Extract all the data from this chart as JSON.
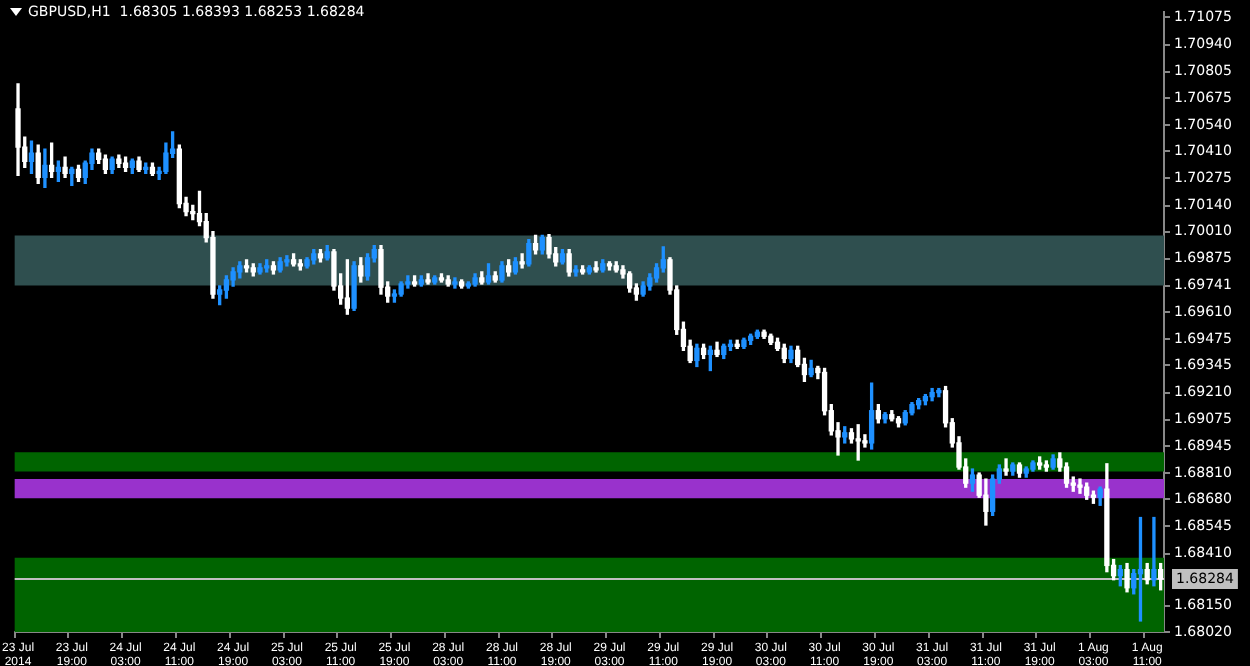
{
  "chart_data": {
    "type": "candlestick",
    "title": "GBPUSD,H1  1.68305 1.68393 1.68253 1.68284",
    "categories": [
      "23 Jul 2014",
      null,
      null,
      null,
      null,
      null,
      null,
      null,
      "23 Jul 19:00",
      null,
      null,
      null,
      null,
      null,
      null,
      null,
      "24 Jul 03:00",
      null,
      null,
      null,
      null,
      null,
      null,
      null,
      "24 Jul 11:00",
      null,
      null,
      null,
      null,
      null,
      null,
      null,
      "24 Jul 19:00",
      null,
      null,
      null,
      null,
      null,
      null,
      null,
      "25 Jul 03:00",
      null,
      null,
      null,
      null,
      null,
      null,
      null,
      "25 Jul 11:00",
      null,
      null,
      null,
      null,
      null,
      null,
      null,
      "25 Jul 19:00",
      null,
      null,
      null,
      null,
      null,
      null,
      null,
      "28 Jul 03:00",
      null,
      null,
      null,
      null,
      null,
      null,
      null,
      "28 Jul 11:00",
      null,
      null,
      null,
      null,
      null,
      null,
      null,
      "28 Jul 19:00",
      null,
      null,
      null,
      null,
      null,
      null,
      null,
      "29 Jul 03:00",
      null,
      null,
      null,
      null,
      null,
      null,
      null,
      "29 Jul 11:00",
      null,
      null,
      null,
      null,
      null,
      null,
      null,
      "29 Jul 19:00",
      null,
      null,
      null,
      null,
      null,
      null,
      null,
      "30 Jul 03:00",
      null,
      null,
      null,
      null,
      null,
      null,
      null,
      "30 Jul 11:00",
      null,
      null,
      null,
      null,
      null,
      null,
      null,
      "30 Jul 19:00",
      null,
      null,
      null,
      null,
      null,
      null,
      null,
      "31 Jul 03:00",
      null,
      null,
      null,
      null,
      null,
      null,
      null,
      "31 Jul 11:00",
      null,
      null,
      null,
      null,
      null,
      null,
      null,
      "31 Jul 19:00",
      null,
      null,
      null,
      null,
      null,
      null,
      null,
      "1 Aug 03:00",
      null,
      null,
      null,
      null,
      null,
      null,
      null,
      "1 Aug 11:00",
      null,
      null
    ],
    "ohlc": [
      [
        1.7062,
        1.70744,
        1.7029,
        1.7043
      ],
      [
        1.7043,
        1.7048,
        1.7033,
        1.7036
      ],
      [
        1.7036,
        1.7046,
        1.703,
        1.704
      ],
      [
        1.704,
        1.7044,
        1.7025,
        1.7028
      ],
      [
        1.7028,
        1.7042,
        1.7023,
        1.7034
      ],
      [
        1.7034,
        1.7045,
        1.7028,
        1.7031
      ],
      [
        1.7031,
        1.7036,
        1.7026,
        1.7033
      ],
      [
        1.7033,
        1.7038,
        1.7028,
        1.703
      ],
      [
        1.703,
        1.7033,
        1.7024,
        1.7032
      ],
      [
        1.7032,
        1.7034,
        1.7026,
        1.7028
      ],
      [
        1.7028,
        1.7036,
        1.7025,
        1.7035
      ],
      [
        1.7035,
        1.7042,
        1.7032,
        1.704
      ],
      [
        1.704,
        1.7042,
        1.7035,
        1.7037
      ],
      [
        1.7037,
        1.7039,
        1.703,
        1.7032
      ],
      [
        1.7032,
        1.7038,
        1.703,
        1.7037
      ],
      [
        1.7037,
        1.7039,
        1.7033,
        1.7035
      ],
      [
        1.7035,
        1.7038,
        1.7031,
        1.7033
      ],
      [
        1.7033,
        1.7037,
        1.703,
        1.7036
      ],
      [
        1.7036,
        1.7038,
        1.7031,
        1.7032
      ],
      [
        1.7032,
        1.7035,
        1.703,
        1.7033
      ],
      [
        1.7033,
        1.7035,
        1.7029,
        1.703
      ],
      [
        1.703,
        1.7033,
        1.7027,
        1.7031
      ],
      [
        1.7031,
        1.7045,
        1.703,
        1.704
      ],
      [
        1.704,
        1.70506,
        1.7038,
        1.7042
      ],
      [
        1.7042,
        1.7044,
        1.7013,
        1.7015
      ],
      [
        1.7015,
        1.7018,
        1.7009,
        1.7011
      ],
      [
        1.7011,
        1.7014,
        1.7007,
        1.701
      ],
      [
        1.701,
        1.7021,
        1.7004,
        1.7006
      ],
      [
        1.7006,
        1.701,
        1.6996,
        1.6998
      ],
      [
        1.6998,
        1.7001,
        1.6968,
        1.697
      ],
      [
        1.697,
        1.6974,
        1.69648,
        1.6972
      ],
      [
        1.6972,
        1.6979,
        1.6968,
        1.6977
      ],
      [
        1.6977,
        1.6983,
        1.6974,
        1.6981
      ],
      [
        1.6981,
        1.6986,
        1.6978,
        1.6984
      ],
      [
        1.6984,
        1.6987,
        1.6981,
        1.6983
      ],
      [
        1.6983,
        1.6985,
        1.6979,
        1.6981
      ],
      [
        1.6981,
        1.6985,
        1.698,
        1.6983
      ],
      [
        1.6983,
        1.6987,
        1.6981,
        1.6984
      ],
      [
        1.6984,
        1.6986,
        1.698,
        1.6982
      ],
      [
        1.6982,
        1.6988,
        1.6981,
        1.6986
      ],
      [
        1.6986,
        1.6989,
        1.6984,
        1.6987
      ],
      [
        1.6987,
        1.699,
        1.6984,
        1.6985
      ],
      [
        1.6985,
        1.6987,
        1.6982,
        1.6984
      ],
      [
        1.6984,
        1.6988,
        1.6983,
        1.6987
      ],
      [
        1.6987,
        1.6992,
        1.6985,
        1.699
      ],
      [
        1.699,
        1.6992,
        1.6986,
        1.6988
      ],
      [
        1.6988,
        1.6994,
        1.6987,
        1.6991
      ],
      [
        1.6991,
        1.6992,
        1.6972,
        1.6974
      ],
      [
        1.6974,
        1.698,
        1.6965,
        1.6968
      ],
      [
        1.6968,
        1.6987,
        1.696,
        1.6963
      ],
      [
        1.6963,
        1.6986,
        1.69619,
        1.6984
      ],
      [
        1.6984,
        1.6988,
        1.6976,
        1.6979
      ],
      [
        1.6979,
        1.699,
        1.6977,
        1.6988
      ],
      [
        1.6988,
        1.6994,
        1.6986,
        1.6992
      ],
      [
        1.6992,
        1.6994,
        1.697,
        1.69734
      ],
      [
        1.69734,
        1.6976,
        1.6966,
        1.6969
      ],
      [
        1.6969,
        1.6972,
        1.6966,
        1.697
      ],
      [
        1.697,
        1.6976,
        1.6969,
        1.6975
      ],
      [
        1.6975,
        1.6979,
        1.6973,
        1.6976
      ],
      [
        1.6976,
        1.6979,
        1.6974,
        1.6975
      ],
      [
        1.6975,
        1.6979,
        1.6974,
        1.6977
      ],
      [
        1.6977,
        1.698,
        1.6975,
        1.6976
      ],
      [
        1.6976,
        1.6979,
        1.6975,
        1.6978
      ],
      [
        1.6978,
        1.698,
        1.6976,
        1.6977
      ],
      [
        1.6977,
        1.6979,
        1.6974,
        1.6975
      ],
      [
        1.6975,
        1.6978,
        1.6973,
        1.6976
      ],
      [
        1.6976,
        1.6977,
        1.6973,
        1.6974
      ],
      [
        1.6974,
        1.6976,
        1.6973,
        1.6975
      ],
      [
        1.6975,
        1.698,
        1.6974,
        1.6978
      ],
      [
        1.6978,
        1.6981,
        1.6975,
        1.6976
      ],
      [
        1.6976,
        1.6985,
        1.6975,
        1.6979
      ],
      [
        1.6979,
        1.6981,
        1.6976,
        1.6977
      ],
      [
        1.6977,
        1.6986,
        1.6976,
        1.6984
      ],
      [
        1.6984,
        1.6987,
        1.6979,
        1.6981
      ],
      [
        1.6981,
        1.6988,
        1.698,
        1.6986
      ],
      [
        1.6986,
        1.699,
        1.6983,
        1.6985
      ],
      [
        1.6985,
        1.6997,
        1.6984,
        1.6995
      ],
      [
        1.6995,
        1.69991,
        1.699,
        1.6992
      ],
      [
        1.6992,
        1.69991,
        1.699,
        1.6998
      ],
      [
        1.6998,
        1.69995,
        1.6988,
        1.699
      ],
      [
        1.699,
        1.6993,
        1.6984,
        1.6986
      ],
      [
        1.6986,
        1.6992,
        1.6985,
        1.699
      ],
      [
        1.699,
        1.6992,
        1.6979,
        1.6981
      ],
      [
        1.6981,
        1.6984,
        1.6979,
        1.6982
      ],
      [
        1.6982,
        1.6984,
        1.698,
        1.6981
      ],
      [
        1.6981,
        1.6984,
        1.698,
        1.6983
      ],
      [
        1.6983,
        1.6986,
        1.6981,
        1.6982
      ],
      [
        1.6982,
        1.6987,
        1.6981,
        1.6985
      ],
      [
        1.6985,
        1.6986,
        1.6982,
        1.6984
      ],
      [
        1.6984,
        1.6986,
        1.6981,
        1.6982
      ],
      [
        1.6982,
        1.6984,
        1.6978,
        1.698
      ],
      [
        1.698,
        1.6981,
        1.6971,
        1.6973
      ],
      [
        1.6973,
        1.6975,
        1.6967,
        1.697
      ],
      [
        1.697,
        1.6976,
        1.6969,
        1.6974
      ],
      [
        1.6974,
        1.698,
        1.6972,
        1.6978
      ],
      [
        1.6978,
        1.6985,
        1.6976,
        1.6983
      ],
      [
        1.6983,
        1.69934,
        1.6981,
        1.6987
      ],
      [
        1.6987,
        1.6988,
        1.697,
        1.6972
      ],
      [
        1.6972,
        1.6974,
        1.695,
        1.69524
      ],
      [
        1.69524,
        1.6956,
        1.6942,
        1.6944
      ],
      [
        1.6944,
        1.6947,
        1.6936,
        1.6937
      ],
      [
        1.6937,
        1.6945,
        1.6934,
        1.6943
      ],
      [
        1.6943,
        1.6945,
        1.6938,
        1.694
      ],
      [
        1.694,
        1.6944,
        1.6932,
        1.6942
      ],
      [
        1.6942,
        1.6946,
        1.6939,
        1.694
      ],
      [
        1.694,
        1.6945,
        1.6938,
        1.6944
      ],
      [
        1.6944,
        1.6947,
        1.6942,
        1.6945
      ],
      [
        1.6945,
        1.6947,
        1.6943,
        1.6944
      ],
      [
        1.6944,
        1.6948,
        1.6943,
        1.6947
      ],
      [
        1.6947,
        1.695,
        1.6945,
        1.6949
      ],
      [
        1.6949,
        1.6952,
        1.6948,
        1.6951
      ],
      [
        1.6951,
        1.6952,
        1.6948,
        1.6949
      ],
      [
        1.6949,
        1.695,
        1.6945,
        1.6946
      ],
      [
        1.6946,
        1.6948,
        1.6942,
        1.6943
      ],
      [
        1.6943,
        1.6945,
        1.6936,
        1.6938
      ],
      [
        1.6938,
        1.6944,
        1.6936,
        1.6942
      ],
      [
        1.6942,
        1.6944,
        1.6934,
        1.6935
      ],
      [
        1.6935,
        1.6938,
        1.69266,
        1.693
      ],
      [
        1.693,
        1.6937,
        1.6929,
        1.6933
      ],
      [
        1.6933,
        1.6934,
        1.6928,
        1.6931
      ],
      [
        1.6931,
        1.6933,
        1.691,
        1.6912
      ],
      [
        1.6912,
        1.6915,
        1.69,
        1.6902
      ],
      [
        1.6902,
        1.6906,
        1.689,
        1.6899
      ],
      [
        1.6899,
        1.6904,
        1.6896,
        1.6901
      ],
      [
        1.6901,
        1.6903,
        1.6896,
        1.6898
      ],
      [
        1.6898,
        1.6905,
        1.68875,
        1.6897
      ],
      [
        1.6897,
        1.69,
        1.6894,
        1.6896
      ],
      [
        1.6896,
        1.69257,
        1.6893,
        1.6912
      ],
      [
        1.6912,
        1.6915,
        1.6906,
        1.6908
      ],
      [
        1.6908,
        1.6911,
        1.6906,
        1.691
      ],
      [
        1.691,
        1.6912,
        1.6907,
        1.6908
      ],
      [
        1.6908,
        1.6909,
        1.6904,
        1.6906
      ],
      [
        1.6906,
        1.6912,
        1.6905,
        1.6911
      ],
      [
        1.6911,
        1.6916,
        1.691,
        1.6915
      ],
      [
        1.6915,
        1.6918,
        1.6913,
        1.6917
      ],
      [
        1.6917,
        1.692,
        1.6915,
        1.6919
      ],
      [
        1.6919,
        1.6923,
        1.6917,
        1.6921
      ],
      [
        1.6921,
        1.6923,
        1.6919,
        1.69219
      ],
      [
        1.69219,
        1.6924,
        1.6904,
        1.6906
      ],
      [
        1.6906,
        1.6908,
        1.6894,
        1.6896
      ],
      [
        1.6896,
        1.6899,
        1.6883,
        1.6884
      ],
      [
        1.6884,
        1.6888,
        1.6874,
        1.6876
      ],
      [
        1.6876,
        1.6883,
        1.6872,
        1.688
      ],
      [
        1.688,
        1.6881,
        1.6869,
        1.687
      ],
      [
        1.687,
        1.6878,
        1.68552,
        1.6862
      ],
      [
        1.6862,
        1.688,
        1.686,
        1.6878
      ],
      [
        1.6878,
        1.6885,
        1.6876,
        1.6883
      ],
      [
        1.6883,
        1.6888,
        1.688,
        1.6882
      ],
      [
        1.6882,
        1.6886,
        1.688,
        1.6885
      ],
      [
        1.6885,
        1.6886,
        1.6879,
        1.6881
      ],
      [
        1.6881,
        1.6884,
        1.6879,
        1.6883
      ],
      [
        1.6883,
        1.6887,
        1.6882,
        1.6886
      ],
      [
        1.6886,
        1.6889,
        1.6883,
        1.6885
      ],
      [
        1.6885,
        1.6887,
        1.6882,
        1.6884
      ],
      [
        1.6884,
        1.689,
        1.6883,
        1.6888
      ],
      [
        1.6888,
        1.6891,
        1.6882,
        1.6884
      ],
      [
        1.6884,
        1.6886,
        1.6874,
        1.6876
      ],
      [
        1.6876,
        1.6879,
        1.6872,
        1.6875
      ],
      [
        1.6875,
        1.6878,
        1.6871,
        1.6874
      ],
      [
        1.6874,
        1.6876,
        1.6868,
        1.687
      ],
      [
        1.687,
        1.6872,
        1.6866,
        1.6869
      ],
      [
        1.6869,
        1.6874,
        1.6865,
        1.6873
      ],
      [
        1.6873,
        1.68856,
        1.6832,
        1.68351
      ],
      [
        1.68351,
        1.6838,
        1.6828,
        1.683
      ],
      [
        1.683,
        1.6835,
        1.6825,
        1.6833
      ],
      [
        1.6833,
        1.6836,
        1.6822,
        1.6824
      ],
      [
        1.6824,
        1.6833,
        1.6821,
        1.6831
      ],
      [
        1.6831,
        1.68589,
        1.68075,
        1.6833
      ],
      [
        1.6833,
        1.6836,
        1.6826,
        1.6828
      ],
      [
        1.6828,
        1.68589,
        1.6825,
        1.6833
      ],
      [
        1.6833,
        1.6836,
        1.6823,
        1.68284
      ]
    ],
    "colors": [
      "#ffffff",
      "#ffffff",
      "#1e90ff",
      "#ffffff",
      "#1e90ff",
      "#ffffff",
      "#1e90ff",
      "#ffffff",
      "#1e90ff",
      "#ffffff",
      "#1e90ff",
      "#1e90ff",
      "#ffffff",
      "#ffffff",
      "#1e90ff",
      "#ffffff",
      "#ffffff",
      "#1e90ff",
      "#ffffff",
      "#1e90ff",
      "#ffffff",
      "#1e90ff",
      "#1e90ff",
      "#1e90ff",
      "#ffffff",
      "#ffffff",
      "#ffffff",
      "#ffffff",
      "#ffffff",
      "#ffffff",
      "#1e90ff",
      "#1e90ff",
      "#1e90ff",
      "#1e90ff",
      "#ffffff",
      "#ffffff",
      "#1e90ff",
      "#1e90ff",
      "#ffffff",
      "#1e90ff",
      "#1e90ff",
      "#ffffff",
      "#ffffff",
      "#1e90ff",
      "#1e90ff",
      "#ffffff",
      "#1e90ff",
      "#ffffff",
      "#ffffff",
      "#ffffff",
      "#1e90ff",
      "#ffffff",
      "#1e90ff",
      "#1e90ff",
      "#ffffff",
      "#ffffff",
      "#1e90ff",
      "#1e90ff",
      "#1e90ff",
      "#ffffff",
      "#1e90ff",
      "#ffffff",
      "#1e90ff",
      "#ffffff",
      "#ffffff",
      "#1e90ff",
      "#ffffff",
      "#1e90ff",
      "#1e90ff",
      "#ffffff",
      "#1e90ff",
      "#ffffff",
      "#1e90ff",
      "#ffffff",
      "#1e90ff",
      "#ffffff",
      "#1e90ff",
      "#ffffff",
      "#1e90ff",
      "#ffffff",
      "#ffffff",
      "#1e90ff",
      "#ffffff",
      "#1e90ff",
      "#ffffff",
      "#1e90ff",
      "#ffffff",
      "#1e90ff",
      "#ffffff",
      "#ffffff",
      "#ffffff",
      "#ffffff",
      "#ffffff",
      "#1e90ff",
      "#1e90ff",
      "#1e90ff",
      "#1e90ff",
      "#ffffff",
      "#ffffff",
      "#ffffff",
      "#ffffff",
      "#1e90ff",
      "#ffffff",
      "#1e90ff",
      "#ffffff",
      "#1e90ff",
      "#1e90ff",
      "#ffffff",
      "#1e90ff",
      "#1e90ff",
      "#1e90ff",
      "#ffffff",
      "#ffffff",
      "#ffffff",
      "#ffffff",
      "#1e90ff",
      "#ffffff",
      "#ffffff",
      "#1e90ff",
      "#ffffff",
      "#ffffff",
      "#ffffff",
      "#ffffff",
      "#1e90ff",
      "#ffffff",
      "#ffffff",
      "#ffffff",
      "#1e90ff",
      "#ffffff",
      "#1e90ff",
      "#ffffff",
      "#ffffff",
      "#1e90ff",
      "#1e90ff",
      "#1e90ff",
      "#1e90ff",
      "#1e90ff",
      "#1e90ff",
      "#ffffff",
      "#ffffff",
      "#ffffff",
      "#ffffff",
      "#1e90ff",
      "#ffffff",
      "#ffffff",
      "#1e90ff",
      "#1e90ff",
      "#ffffff",
      "#1e90ff",
      "#ffffff",
      "#1e90ff",
      "#1e90ff",
      "#ffffff",
      "#ffffff",
      "#1e90ff",
      "#ffffff",
      "#ffffff",
      "#ffffff",
      "#ffffff",
      "#ffffff",
      "#ffffff",
      "#1e90ff",
      "#ffffff",
      "#ffffff",
      "#1e90ff",
      "#ffffff",
      "#1e90ff",
      "#1e90ff",
      "#ffffff",
      "#1e90ff",
      "#ffffff"
    ],
    "ylim": [
      1.6802,
      1.711
    ],
    "yticks": [
      {
        "value": 1.71075,
        "label": "1.71075"
      },
      {
        "value": 1.7094,
        "label": "1.70940"
      },
      {
        "value": 1.70805,
        "label": "1.70805"
      },
      {
        "value": 1.70675,
        "label": "1.70675"
      },
      {
        "value": 1.7054,
        "label": "1.70540"
      },
      {
        "value": 1.7041,
        "label": "1.70410"
      },
      {
        "value": 1.70275,
        "label": "1.70275"
      },
      {
        "value": 1.7014,
        "label": "1.70140"
      },
      {
        "value": 1.7001,
        "label": "1.70010"
      },
      {
        "value": 1.69875,
        "label": "1.69875"
      },
      {
        "value": 1.69741,
        "label": "1.69741"
      },
      {
        "value": 1.6961,
        "label": "1.69610"
      },
      {
        "value": 1.69475,
        "label": "1.69475"
      },
      {
        "value": 1.69345,
        "label": "1.69345"
      },
      {
        "value": 1.6921,
        "label": "1.69210"
      },
      {
        "value": 1.69075,
        "label": "1.69075"
      },
      {
        "value": 1.68945,
        "label": "1.68945"
      },
      {
        "value": 1.6881,
        "label": "1.68810"
      },
      {
        "value": 1.6868,
        "label": "1.68680"
      },
      {
        "value": 1.68545,
        "label": "1.68545"
      },
      {
        "value": 1.6841,
        "label": "1.68410"
      },
      {
        "value": 1.6815,
        "label": "1.68150"
      },
      {
        "value": 1.6802,
        "label": "1.68020"
      }
    ],
    "bands": [
      {
        "axis": "y",
        "from": 1.69743,
        "to": 1.69991,
        "color": "#2f4f4f"
      },
      {
        "axis": "y",
        "from": 1.68818,
        "to": 1.68914,
        "color": "#006400"
      },
      {
        "axis": "y",
        "from": 1.68685,
        "to": 1.6878,
        "color": "#9932cc"
      },
      {
        "axis": "y",
        "from": 1.6802,
        "to": 1.68389,
        "color": "#006400"
      }
    ],
    "ref_lines": [
      {
        "axis": "y",
        "value": 1.68284,
        "label": "1.68284",
        "color": "#c0c0c0"
      }
    ]
  }
}
